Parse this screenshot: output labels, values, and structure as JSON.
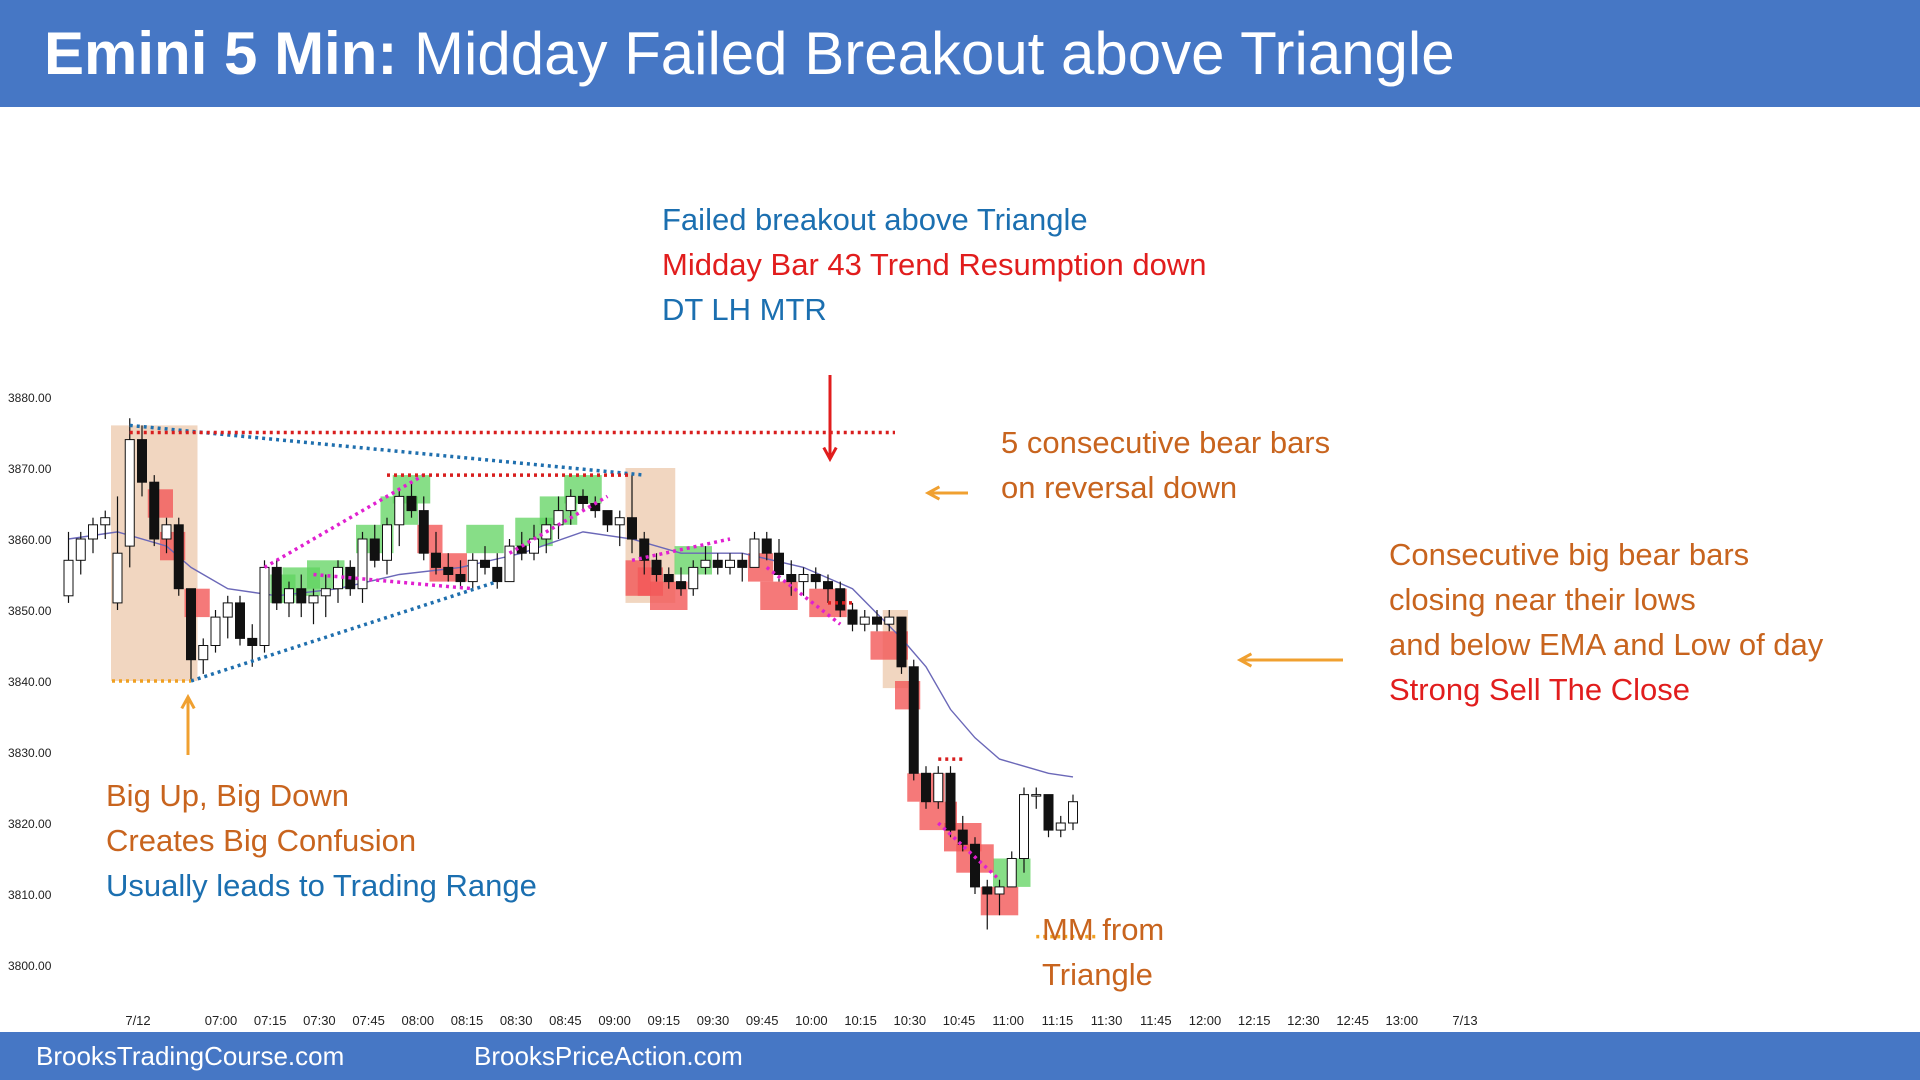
{
  "header": {
    "title_strong": "Emini 5 Min:",
    "title_rest": "Midday Failed Breakout above Triangle"
  },
  "footer": {
    "left_text": "BrooksTradingCourse.com",
    "right_text": "BrooksPriceAction.com"
  },
  "colors": {
    "header_bg": "#4677c5",
    "orange": "#c8641e",
    "red": "#e11d1d",
    "blue": "#1b6fb0",
    "bull_box": "#5fd35f",
    "bear_box": "#f25757",
    "range_box": "#ebc5a5",
    "ema": "#6b68b8",
    "triangle": "#1f6fae",
    "wedge": "#e020d0",
    "level_red": "#d81e1e",
    "level_orange": "#f0a020"
  },
  "annotations": {
    "top": {
      "line1": "Failed breakout above Triangle",
      "line2": "Midday Bar 43 Trend Resumption  down",
      "line3": "DT LH MTR"
    },
    "five_bear": {
      "line1": "5 consecutive  bear bars",
      "line2": "on reversal down"
    },
    "consec": {
      "line1": "Consecutive  big bear bars",
      "line2": "closing near their lows",
      "line3": "and below EMA and Low of day",
      "line4": "Strong Sell The Close"
    },
    "bigupdown": {
      "line1": "Big Up, Big Down",
      "line2": "Creates Big Confusion",
      "line3": "Usually leads to Trading Range"
    },
    "mm": {
      "line1": "MM from",
      "line2": "Triangle"
    }
  },
  "chart_data": {
    "type": "candlestick",
    "title": "",
    "xlabel": "",
    "ylabel": "",
    "ylim": [
      3800,
      3880
    ],
    "y_ticks": [
      "3880.00",
      "3870.00",
      "3860.00",
      "3850.00",
      "3840.00",
      "3830.00",
      "3820.00",
      "3810.00",
      "3800.00"
    ],
    "x_ticks": [
      "7/12",
      "07:00",
      "07:15",
      "07:30",
      "07:45",
      "08:00",
      "08:15",
      "08:30",
      "08:45",
      "09:00",
      "09:15",
      "09:30",
      "09:45",
      "10:00",
      "10:15",
      "10:30",
      "10:45",
      "11:00",
      "11:15",
      "11:30",
      "11:45",
      "12:00",
      "12:15",
      "12:30",
      "12:45",
      "13:00",
      "7/13"
    ],
    "bars": [
      {
        "o": 3852,
        "h": 3861,
        "l": 3851,
        "c": 3857
      },
      {
        "o": 3857,
        "h": 3861,
        "l": 3855,
        "c": 3860
      },
      {
        "o": 3860,
        "h": 3863,
        "l": 3858,
        "c": 3862
      },
      {
        "o": 3862,
        "h": 3864,
        "l": 3860,
        "c": 3863
      },
      {
        "o": 3851,
        "h": 3866,
        "l": 3850,
        "c": 3858
      },
      {
        "o": 3859,
        "h": 3877,
        "l": 3856,
        "c": 3874
      },
      {
        "o": 3874,
        "h": 3876,
        "l": 3866,
        "c": 3868
      },
      {
        "o": 3868,
        "h": 3869,
        "l": 3859,
        "c": 3860
      },
      {
        "o": 3860,
        "h": 3863,
        "l": 3858,
        "c": 3862
      },
      {
        "o": 3862,
        "h": 3863,
        "l": 3852,
        "c": 3853
      },
      {
        "o": 3853,
        "h": 3853,
        "l": 3840,
        "c": 3843
      },
      {
        "o": 3843,
        "h": 3846,
        "l": 3841,
        "c": 3845
      },
      {
        "o": 3845,
        "h": 3850,
        "l": 3844,
        "c": 3849
      },
      {
        "o": 3849,
        "h": 3852,
        "l": 3846,
        "c": 3851
      },
      {
        "o": 3851,
        "h": 3852,
        "l": 3845,
        "c": 3846
      },
      {
        "o": 3846,
        "h": 3848,
        "l": 3842,
        "c": 3845
      },
      {
        "o": 3845,
        "h": 3857,
        "l": 3844,
        "c": 3856
      },
      {
        "o": 3856,
        "h": 3857,
        "l": 3850,
        "c": 3851
      },
      {
        "o": 3851,
        "h": 3854,
        "l": 3849,
        "c": 3853
      },
      {
        "o": 3853,
        "h": 3855,
        "l": 3849,
        "c": 3851
      },
      {
        "o": 3851,
        "h": 3853,
        "l": 3848,
        "c": 3852
      },
      {
        "o": 3852,
        "h": 3855,
        "l": 3849,
        "c": 3853
      },
      {
        "o": 3853,
        "h": 3857,
        "l": 3851,
        "c": 3856
      },
      {
        "o": 3856,
        "h": 3857,
        "l": 3852,
        "c": 3853
      },
      {
        "o": 3853,
        "h": 3861,
        "l": 3851,
        "c": 3860
      },
      {
        "o": 3860,
        "h": 3862,
        "l": 3856,
        "c": 3857
      },
      {
        "o": 3857,
        "h": 3863,
        "l": 3855,
        "c": 3862
      },
      {
        "o": 3862,
        "h": 3867,
        "l": 3859,
        "c": 3866
      },
      {
        "o": 3866,
        "h": 3868,
        "l": 3863,
        "c": 3864
      },
      {
        "o": 3864,
        "h": 3866,
        "l": 3857,
        "c": 3858
      },
      {
        "o": 3858,
        "h": 3861,
        "l": 3855,
        "c": 3856
      },
      {
        "o": 3856,
        "h": 3858,
        "l": 3854,
        "c": 3855
      },
      {
        "o": 3855,
        "h": 3857,
        "l": 3853,
        "c": 3854
      },
      {
        "o": 3854,
        "h": 3858,
        "l": 3853,
        "c": 3857
      },
      {
        "o": 3857,
        "h": 3859,
        "l": 3855,
        "c": 3856
      },
      {
        "o": 3856,
        "h": 3858,
        "l": 3853,
        "c": 3854
      },
      {
        "o": 3854,
        "h": 3860,
        "l": 3854,
        "c": 3859
      },
      {
        "o": 3859,
        "h": 3861,
        "l": 3857,
        "c": 3858
      },
      {
        "o": 3858,
        "h": 3862,
        "l": 3857,
        "c": 3860
      },
      {
        "o": 3860,
        "h": 3863,
        "l": 3858,
        "c": 3862
      },
      {
        "o": 3862,
        "h": 3866,
        "l": 3860,
        "c": 3864
      },
      {
        "o": 3864,
        "h": 3867,
        "l": 3862,
        "c": 3866
      },
      {
        "o": 3866,
        "h": 3867,
        "l": 3864,
        "c": 3865
      },
      {
        "o": 3865,
        "h": 3866,
        "l": 3863,
        "c": 3864
      },
      {
        "o": 3864,
        "h": 3864,
        "l": 3861,
        "c": 3862
      },
      {
        "o": 3862,
        "h": 3864,
        "l": 3859,
        "c": 3863
      },
      {
        "o": 3863,
        "h": 3869,
        "l": 3858,
        "c": 3860
      },
      {
        "o": 3860,
        "h": 3861,
        "l": 3855,
        "c": 3857
      },
      {
        "o": 3857,
        "h": 3858,
        "l": 3854,
        "c": 3855
      },
      {
        "o": 3855,
        "h": 3856,
        "l": 3853,
        "c": 3854
      },
      {
        "o": 3854,
        "h": 3856,
        "l": 3852,
        "c": 3853
      },
      {
        "o": 3853,
        "h": 3857,
        "l": 3852,
        "c": 3856
      },
      {
        "o": 3856,
        "h": 3859,
        "l": 3855,
        "c": 3857
      },
      {
        "o": 3857,
        "h": 3858,
        "l": 3855,
        "c": 3856
      },
      {
        "o": 3856,
        "h": 3858,
        "l": 3855,
        "c": 3857
      },
      {
        "o": 3857,
        "h": 3858,
        "l": 3854,
        "c": 3856
      },
      {
        "o": 3856,
        "h": 3861,
        "l": 3856,
        "c": 3860
      },
      {
        "o": 3860,
        "h": 3861,
        "l": 3857,
        "c": 3858
      },
      {
        "o": 3858,
        "h": 3860,
        "l": 3854,
        "c": 3855
      },
      {
        "o": 3855,
        "h": 3857,
        "l": 3852,
        "c": 3854
      },
      {
        "o": 3854,
        "h": 3856,
        "l": 3852,
        "c": 3855
      },
      {
        "o": 3855,
        "h": 3856,
        "l": 3853,
        "c": 3854
      },
      {
        "o": 3854,
        "h": 3855,
        "l": 3851,
        "c": 3853
      },
      {
        "o": 3853,
        "h": 3854,
        "l": 3849,
        "c": 3850
      },
      {
        "o": 3850,
        "h": 3851,
        "l": 3847,
        "c": 3848
      },
      {
        "o": 3848,
        "h": 3850,
        "l": 3847,
        "c": 3849
      },
      {
        "o": 3849,
        "h": 3850,
        "l": 3847,
        "c": 3848
      },
      {
        "o": 3848,
        "h": 3850,
        "l": 3847,
        "c": 3849
      },
      {
        "o": 3849,
        "h": 3849,
        "l": 3841,
        "c": 3842
      },
      {
        "o": 3842,
        "h": 3843,
        "l": 3826,
        "c": 3827
      },
      {
        "o": 3827,
        "h": 3828,
        "l": 3822,
        "c": 3823
      },
      {
        "o": 3823,
        "h": 3828,
        "l": 3822,
        "c": 3827
      },
      {
        "o": 3827,
        "h": 3828,
        "l": 3818,
        "c": 3819
      },
      {
        "o": 3819,
        "h": 3821,
        "l": 3816,
        "c": 3817
      },
      {
        "o": 3817,
        "h": 3818,
        "l": 3810,
        "c": 3811
      },
      {
        "o": 3811,
        "h": 3812,
        "l": 3805,
        "c": 3810
      },
      {
        "o": 3810,
        "h": 3812,
        "l": 3807,
        "c": 3811
      },
      {
        "o": 3811,
        "h": 3816,
        "l": 3811,
        "c": 3815
      },
      {
        "o": 3815,
        "h": 3825,
        "l": 3813,
        "c": 3824
      },
      {
        "o": 3824,
        "h": 3825,
        "l": 3822,
        "c": 3824
      },
      {
        "o": 3824,
        "h": 3824,
        "l": 3818,
        "c": 3819
      },
      {
        "o": 3819,
        "h": 3821,
        "l": 3818,
        "c": 3820
      },
      {
        "o": 3820,
        "h": 3824,
        "l": 3819,
        "c": 3823
      }
    ],
    "ema": [
      {
        "i": 0,
        "v": 3860
      },
      {
        "i": 4,
        "v": 3861
      },
      {
        "i": 8,
        "v": 3859
      },
      {
        "i": 10,
        "v": 3856
      },
      {
        "i": 13,
        "v": 3853
      },
      {
        "i": 17,
        "v": 3852
      },
      {
        "i": 22,
        "v": 3853
      },
      {
        "i": 27,
        "v": 3855
      },
      {
        "i": 32,
        "v": 3856
      },
      {
        "i": 37,
        "v": 3858
      },
      {
        "i": 42,
        "v": 3861
      },
      {
        "i": 46,
        "v": 3860
      },
      {
        "i": 50,
        "v": 3858
      },
      {
        "i": 55,
        "v": 3858
      },
      {
        "i": 60,
        "v": 3856
      },
      {
        "i": 64,
        "v": 3853
      },
      {
        "i": 68,
        "v": 3846
      },
      {
        "i": 70,
        "v": 3842
      },
      {
        "i": 72,
        "v": 3836
      },
      {
        "i": 74,
        "v": 3832
      },
      {
        "i": 76,
        "v": 3829
      },
      {
        "i": 80,
        "v": 3827
      },
      {
        "i": 82,
        "v": 3826.5
      }
    ],
    "highlight_boxes": [
      {
        "kind": "range",
        "i0": 4,
        "i1": 10,
        "top": 3876,
        "bottom": 3840
      },
      {
        "kind": "range",
        "i0": 46,
        "i1": 49,
        "top": 3870,
        "bottom": 3851
      },
      {
        "kind": "range",
        "i0": 67,
        "i1": 68,
        "top": 3850,
        "bottom": 3839
      },
      {
        "kind": "bear",
        "i0": 7,
        "i1": 8,
        "top": 3867,
        "bottom": 3863
      },
      {
        "kind": "bear",
        "i0": 8,
        "i1": 9,
        "top": 3861,
        "bottom": 3857
      },
      {
        "kind": "bear",
        "i0": 10,
        "i1": 11,
        "top": 3853,
        "bottom": 3849
      },
      {
        "kind": "bull",
        "i0": 17,
        "i1": 18,
        "top": 3855,
        "bottom": 3851
      },
      {
        "kind": "bull",
        "i0": 18,
        "i1": 20,
        "top": 3856,
        "bottom": 3852
      },
      {
        "kind": "bull",
        "i0": 20,
        "i1": 22,
        "top": 3857,
        "bottom": 3853
      },
      {
        "kind": "bull",
        "i0": 24,
        "i1": 26,
        "top": 3862,
        "bottom": 3858
      },
      {
        "kind": "bull",
        "i0": 26,
        "i1": 28,
        "top": 3866,
        "bottom": 3862
      },
      {
        "kind": "bull",
        "i0": 27,
        "i1": 29,
        "top": 3869,
        "bottom": 3865
      },
      {
        "kind": "bear",
        "i0": 29,
        "i1": 30,
        "top": 3862,
        "bottom": 3858
      },
      {
        "kind": "bear",
        "i0": 30,
        "i1": 32,
        "top": 3858,
        "bottom": 3854
      },
      {
        "kind": "bull",
        "i0": 33,
        "i1": 35,
        "top": 3862,
        "bottom": 3858
      },
      {
        "kind": "bull",
        "i0": 37,
        "i1": 39,
        "top": 3863,
        "bottom": 3859
      },
      {
        "kind": "bull",
        "i0": 39,
        "i1": 41,
        "top": 3866,
        "bottom": 3862
      },
      {
        "kind": "bull",
        "i0": 41,
        "i1": 43,
        "top": 3869,
        "bottom": 3865
      },
      {
        "kind": "bear",
        "i0": 46,
        "i1": 47,
        "top": 3857,
        "bottom": 3852
      },
      {
        "kind": "bear",
        "i0": 47,
        "i1": 48,
        "top": 3856,
        "bottom": 3852
      },
      {
        "kind": "bear",
        "i0": 48,
        "i1": 50,
        "top": 3854,
        "bottom": 3850
      },
      {
        "kind": "bull",
        "i0": 50,
        "i1": 52,
        "top": 3859,
        "bottom": 3855
      },
      {
        "kind": "bear",
        "i0": 56,
        "i1": 57,
        "top": 3858,
        "bottom": 3854
      },
      {
        "kind": "bear",
        "i0": 57,
        "i1": 59,
        "top": 3854,
        "bottom": 3850
      },
      {
        "kind": "bear",
        "i0": 61,
        "i1": 63,
        "top": 3853,
        "bottom": 3849
      },
      {
        "kind": "bear",
        "i0": 66,
        "i1": 68,
        "top": 3847,
        "bottom": 3843
      },
      {
        "kind": "bear",
        "i0": 68,
        "i1": 69,
        "top": 3840,
        "bottom": 3836
      },
      {
        "kind": "bear",
        "i0": 69,
        "i1": 71,
        "top": 3827,
        "bottom": 3823
      },
      {
        "kind": "bear",
        "i0": 70,
        "i1": 72,
        "top": 3823,
        "bottom": 3819
      },
      {
        "kind": "bear",
        "i0": 72,
        "i1": 74,
        "top": 3820,
        "bottom": 3816
      },
      {
        "kind": "bear",
        "i0": 73,
        "i1": 75,
        "top": 3817,
        "bottom": 3813
      },
      {
        "kind": "bear",
        "i0": 75,
        "i1": 77,
        "top": 3811,
        "bottom": 3807
      },
      {
        "kind": "bull",
        "i0": 76,
        "i1": 78,
        "top": 3815,
        "bottom": 3811
      }
    ],
    "levels": [
      {
        "kind": "red",
        "i0": 5,
        "i1": 50,
        "v": 3875
      },
      {
        "kind": "red",
        "i0": 26,
        "i1": 46,
        "v": 3869
      },
      {
        "kind": "red",
        "i0": 62,
        "i1": 64,
        "v": 3851
      },
      {
        "kind": "red",
        "i0": 71,
        "i1": 73,
        "v": 3829
      },
      {
        "kind": "orange",
        "i0": 2,
        "i1": 10,
        "v": 3840
      },
      {
        "kind": "orange",
        "i0": 79,
        "i1": 84,
        "v": 3804
      }
    ],
    "triangle": [
      {
        "i0": 5,
        "v0": 3876,
        "i1": 47,
        "v1": 3869
      },
      {
        "i0": 10,
        "v0": 3840,
        "i1": 35,
        "v1": 3854
      }
    ],
    "wedges": [
      {
        "i0": 16,
        "v0": 3856,
        "i1": 29,
        "v1": 3869
      },
      {
        "i0": 20,
        "v0": 3855,
        "i1": 33,
        "v1": 3853
      },
      {
        "i0": 36,
        "v0": 3858,
        "i1": 44,
        "v1": 3866
      },
      {
        "i0": 46,
        "v0": 3857,
        "i1": 54,
        "v1": 3860
      },
      {
        "i0": 57,
        "v0": 3856,
        "i1": 63,
        "v1": 3848
      },
      {
        "i0": 71,
        "v0": 3820,
        "i1": 76,
        "v1": 3812
      }
    ],
    "arrows": [
      {
        "kind": "red",
        "i": 46,
        "from": 3885,
        "to": 3872
      },
      {
        "kind": "orange",
        "i": 6,
        "from": 3833,
        "to": 3839
      },
      {
        "kind": "orange",
        "i": 52,
        "from": 3866,
        "to": 3866
      },
      {
        "kind": "orange",
        "i": 75,
        "from": 3843,
        "to": 3843
      }
    ]
  }
}
